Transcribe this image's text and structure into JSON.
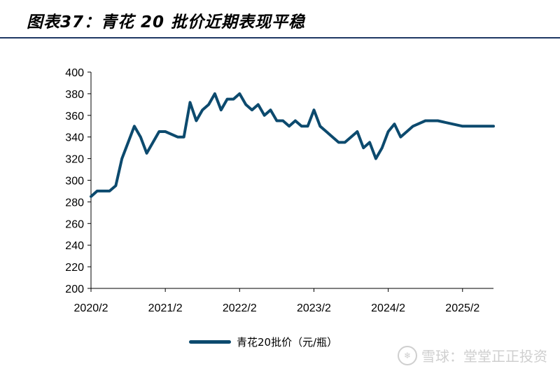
{
  "header": {
    "title": "图表37：青花 20 批价近期表现平稳",
    "rule_color": "#1f3864"
  },
  "watermark": {
    "text": "雪球：堂堂正正投资"
  },
  "colors": {
    "series": "#0c4a6e"
  },
  "chart_data": {
    "type": "line",
    "title": "图表37：青花 20 批价近期表现平稳",
    "xlabel": "",
    "ylabel": "",
    "x_tick_labels": [
      "2020/2",
      "2021/2",
      "2022/2",
      "2023/2",
      "2024/2",
      "2025/2"
    ],
    "y_tick_labels": [
      "200",
      "220",
      "240",
      "260",
      "280",
      "300",
      "320",
      "340",
      "360",
      "380",
      "400"
    ],
    "ylim": [
      200,
      400
    ],
    "xlim": [
      "2020/2",
      "2025/7"
    ],
    "grid": false,
    "legend": "bottom-center",
    "series": [
      {
        "name": "青花20批价（元/瓶）",
        "x": [
          "2020/2",
          "2020/3",
          "2020/5",
          "2020/6",
          "2020/7",
          "2020/8",
          "2020/9",
          "2020/10",
          "2020/11",
          "2020/12",
          "2021/1",
          "2021/2",
          "2021/4",
          "2021/5",
          "2021/6",
          "2021/7",
          "2021/8",
          "2021/9",
          "2021/10",
          "2021/11",
          "2021/12",
          "2022/1",
          "2022/2",
          "2022/3",
          "2022/4",
          "2022/5",
          "2022/6",
          "2022/7",
          "2022/8",
          "2022/9",
          "2022/10",
          "2022/11",
          "2022/12",
          "2023/1",
          "2023/2",
          "2023/3",
          "2023/4",
          "2023/5",
          "2023/6",
          "2023/7",
          "2023/8",
          "2023/9",
          "2023/10",
          "2023/11",
          "2023/12",
          "2024/1",
          "2024/2",
          "2024/3",
          "2024/4",
          "2024/5",
          "2024/6",
          "2024/8",
          "2024/10",
          "2025/2",
          "2025/7"
        ],
        "values": [
          285,
          290,
          290,
          295,
          320,
          335,
          350,
          340,
          325,
          335,
          345,
          345,
          340,
          340,
          372,
          355,
          365,
          370,
          380,
          365,
          375,
          375,
          380,
          370,
          365,
          370,
          360,
          365,
          355,
          355,
          350,
          355,
          350,
          350,
          365,
          350,
          345,
          340,
          335,
          335,
          340,
          345,
          330,
          335,
          320,
          330,
          345,
          352,
          340,
          345,
          350,
          355,
          355,
          350,
          350
        ]
      }
    ]
  }
}
